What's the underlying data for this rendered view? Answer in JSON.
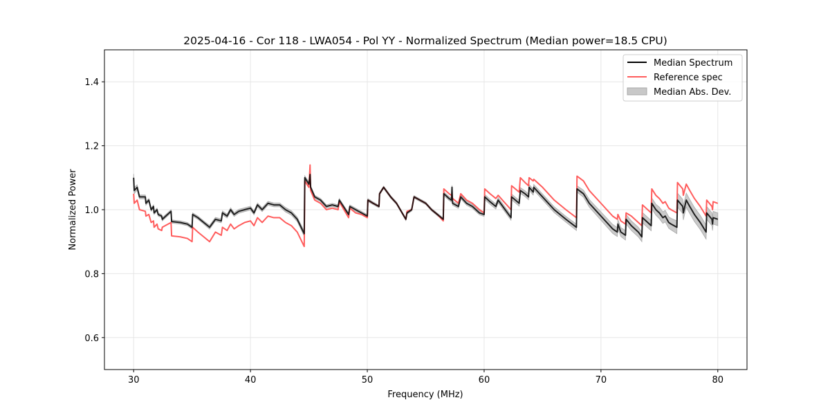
{
  "chart_data": {
    "type": "line",
    "title": "2025-04-16 - Cor 118 - LWA054 - Pol YY - Normalized Spectrum (Median power=18.5 CPU)",
    "xlabel": "Frequency (MHz)",
    "ylabel": "Normalized Power",
    "xlim": [
      27.5,
      82.5
    ],
    "ylim": [
      0.5,
      1.5
    ],
    "xticks": [
      30,
      40,
      50,
      60,
      70,
      80
    ],
    "xtick_labels": [
      "30",
      "40",
      "50",
      "60",
      "70",
      "80"
    ],
    "yticks": [
      0.6,
      0.8,
      1.0,
      1.2,
      1.4
    ],
    "ytick_labels": [
      "0.6",
      "0.8",
      "1.0",
      "1.2",
      "1.4"
    ],
    "grid": true,
    "legend_position": "top-right",
    "legend": [
      "Median Spectrum",
      "Reference spec",
      "Median Abs. Dev."
    ],
    "colors": {
      "median": "#000000",
      "reference": "#ff5c5c",
      "mad": "#b0b0b0"
    },
    "columns": [
      "freq_mhz",
      "median",
      "reference",
      "mad"
    ],
    "points": [
      [
        30.0,
        1.1,
        1.05,
        0.012
      ],
      [
        30.05,
        1.06,
        1.02,
        0.01
      ],
      [
        30.3,
        1.07,
        1.03,
        0.008
      ],
      [
        30.5,
        1.04,
        1.0,
        0.006
      ],
      [
        31.0,
        1.04,
        0.995,
        0.006
      ],
      [
        31.05,
        1.02,
        0.98,
        0.006
      ],
      [
        31.3,
        1.03,
        0.985,
        0.005
      ],
      [
        31.5,
        1.0,
        0.96,
        0.005
      ],
      [
        31.7,
        1.01,
        0.965,
        0.005
      ],
      [
        31.75,
        0.99,
        0.945,
        0.005
      ],
      [
        32.0,
        1.0,
        0.955,
        0.005
      ],
      [
        32.1,
        0.985,
        0.94,
        0.005
      ],
      [
        32.4,
        0.98,
        0.935,
        0.005
      ],
      [
        32.45,
        0.97,
        0.945,
        0.005
      ],
      [
        33.2,
        0.995,
        0.96,
        0.005
      ],
      [
        33.25,
        0.963,
        0.918,
        0.005
      ],
      [
        34.0,
        0.96,
        0.915,
        0.005
      ],
      [
        34.6,
        0.955,
        0.91,
        0.005
      ],
      [
        35.0,
        0.945,
        0.9,
        0.005
      ],
      [
        35.05,
        0.985,
        0.945,
        0.005
      ],
      [
        35.5,
        0.975,
        0.93,
        0.005
      ],
      [
        36.0,
        0.96,
        0.915,
        0.005
      ],
      [
        36.5,
        0.945,
        0.9,
        0.006
      ],
      [
        37.0,
        0.97,
        0.93,
        0.006
      ],
      [
        37.5,
        0.965,
        0.92,
        0.006
      ],
      [
        37.6,
        0.99,
        0.945,
        0.006
      ],
      [
        38.0,
        0.98,
        0.935,
        0.006
      ],
      [
        38.3,
        1.0,
        0.955,
        0.006
      ],
      [
        38.6,
        0.985,
        0.94,
        0.006
      ],
      [
        39.0,
        0.995,
        0.95,
        0.006
      ],
      [
        39.5,
        1.0,
        0.96,
        0.006
      ],
      [
        40.0,
        1.005,
        0.965,
        0.006
      ],
      [
        40.3,
        0.99,
        0.95,
        0.006
      ],
      [
        40.6,
        1.015,
        0.975,
        0.006
      ],
      [
        41.0,
        1.0,
        0.96,
        0.006
      ],
      [
        41.5,
        1.02,
        0.98,
        0.006
      ],
      [
        42.0,
        1.015,
        0.975,
        0.006
      ],
      [
        42.5,
        1.015,
        0.975,
        0.006
      ],
      [
        43.0,
        1.0,
        0.96,
        0.007
      ],
      [
        43.5,
        0.99,
        0.95,
        0.007
      ],
      [
        44.0,
        0.97,
        0.93,
        0.007
      ],
      [
        44.6,
        0.925,
        0.885,
        0.008
      ],
      [
        44.65,
        1.1,
        1.09,
        0.006
      ],
      [
        45.0,
        1.08,
        1.07,
        0.006
      ],
      [
        45.1,
        1.11,
        1.14,
        0.005
      ],
      [
        45.15,
        1.07,
        1.06,
        0.005
      ],
      [
        45.5,
        1.04,
        1.03,
        0.005
      ],
      [
        46.0,
        1.03,
        1.02,
        0.005
      ],
      [
        46.5,
        1.01,
        1.0,
        0.005
      ],
      [
        47.0,
        1.015,
        1.005,
        0.005
      ],
      [
        47.5,
        1.01,
        1.0,
        0.005
      ],
      [
        47.6,
        1.03,
        1.025,
        0.005
      ],
      [
        48.4,
        0.985,
        0.975,
        0.005
      ],
      [
        48.5,
        1.01,
        1.005,
        0.005
      ],
      [
        49.0,
        1.0,
        0.99,
        0.005
      ],
      [
        49.5,
        0.99,
        0.985,
        0.005
      ],
      [
        50.0,
        0.98,
        0.975,
        0.005
      ],
      [
        50.05,
        1.03,
        1.03,
        0.005
      ],
      [
        50.5,
        1.02,
        1.02,
        0.004
      ],
      [
        51.0,
        1.01,
        1.01,
        0.004
      ],
      [
        51.05,
        1.05,
        1.05,
        0.004
      ],
      [
        51.4,
        1.07,
        1.07,
        0.004
      ],
      [
        52.0,
        1.04,
        1.04,
        0.004
      ],
      [
        52.5,
        1.02,
        1.02,
        0.004
      ],
      [
        53.3,
        0.97,
        0.97,
        0.004
      ],
      [
        53.4,
        0.99,
        0.995,
        0.004
      ],
      [
        53.8,
        1.0,
        1.0,
        0.004
      ],
      [
        54.0,
        1.04,
        1.04,
        0.004
      ],
      [
        54.5,
        1.03,
        1.03,
        0.004
      ],
      [
        55.0,
        1.02,
        1.02,
        0.004
      ],
      [
        55.5,
        1.0,
        1.0,
        0.004
      ],
      [
        56.0,
        0.985,
        0.985,
        0.004
      ],
      [
        56.5,
        0.97,
        0.965,
        0.004
      ],
      [
        56.55,
        1.05,
        1.065,
        0.006
      ],
      [
        57.0,
        1.035,
        1.05,
        0.006
      ],
      [
        57.2,
        1.03,
        1.045,
        0.006
      ],
      [
        57.25,
        1.07,
        1.04,
        0.006
      ],
      [
        57.3,
        1.02,
        1.035,
        0.006
      ],
      [
        57.8,
        1.01,
        1.02,
        0.006
      ],
      [
        58.0,
        1.04,
        1.05,
        0.006
      ],
      [
        58.5,
        1.02,
        1.03,
        0.006
      ],
      [
        59.0,
        1.01,
        1.02,
        0.006
      ],
      [
        59.3,
        1.0,
        1.01,
        0.006
      ],
      [
        59.6,
        0.99,
        1.0,
        0.006
      ],
      [
        60.0,
        0.985,
        0.99,
        0.006
      ],
      [
        60.05,
        1.04,
        1.065,
        0.008
      ],
      [
        60.5,
        1.025,
        1.05,
        0.008
      ],
      [
        61.0,
        1.01,
        1.035,
        0.008
      ],
      [
        61.2,
        1.03,
        1.045,
        0.008
      ],
      [
        62.3,
        0.975,
        1.0,
        0.008
      ],
      [
        62.35,
        1.04,
        1.075,
        0.009
      ],
      [
        63.0,
        1.02,
        1.055,
        0.009
      ],
      [
        63.1,
        1.06,
        1.1,
        0.009
      ],
      [
        63.5,
        1.05,
        1.085,
        0.009
      ],
      [
        63.8,
        1.04,
        1.075,
        0.009
      ],
      [
        63.85,
        1.07,
        1.1,
        0.009
      ],
      [
        64.2,
        1.055,
        1.09,
        0.009
      ],
      [
        64.25,
        1.07,
        1.095,
        0.009
      ],
      [
        65.0,
        1.04,
        1.07,
        0.009
      ],
      [
        66.0,
        1.0,
        1.03,
        0.009
      ],
      [
        67.0,
        0.97,
        1.0,
        0.009
      ],
      [
        67.9,
        0.945,
        0.975,
        0.01
      ],
      [
        67.95,
        1.065,
        1.105,
        0.01
      ],
      [
        68.5,
        1.05,
        1.09,
        0.011
      ],
      [
        69.0,
        1.02,
        1.06,
        0.012
      ],
      [
        70.0,
        0.98,
        1.02,
        0.013
      ],
      [
        71.0,
        0.94,
        0.98,
        0.014
      ],
      [
        71.4,
        0.93,
        0.97,
        0.014
      ],
      [
        71.45,
        0.955,
        0.985,
        0.014
      ],
      [
        71.7,
        0.93,
        0.965,
        0.014
      ],
      [
        72.1,
        0.92,
        0.955,
        0.015
      ],
      [
        72.15,
        0.97,
        0.99,
        0.015
      ],
      [
        72.6,
        0.95,
        0.98,
        0.015
      ],
      [
        73.2,
        0.93,
        0.96,
        0.015
      ],
      [
        73.5,
        0.915,
        0.95,
        0.015
      ],
      [
        73.55,
        0.975,
        1.015,
        0.016
      ],
      [
        74.3,
        0.95,
        0.99,
        0.016
      ],
      [
        74.35,
        1.02,
        1.065,
        0.017
      ],
      [
        74.7,
        1.0,
        1.045,
        0.017
      ],
      [
        75.0,
        0.99,
        1.035,
        0.018
      ],
      [
        75.3,
        0.975,
        1.02,
        0.018
      ],
      [
        75.5,
        0.98,
        1.025,
        0.018
      ],
      [
        75.8,
        0.96,
        1.005,
        0.018
      ],
      [
        76.0,
        0.955,
        1.0,
        0.018
      ],
      [
        76.5,
        0.945,
        0.99,
        0.02
      ],
      [
        76.55,
        1.03,
        1.085,
        0.022
      ],
      [
        77.0,
        1.01,
        1.065,
        0.022
      ],
      [
        77.05,
        0.99,
        1.045,
        0.022
      ],
      [
        77.3,
        1.03,
        1.08,
        0.022
      ],
      [
        77.6,
        1.01,
        1.06,
        0.022
      ],
      [
        78.0,
        0.985,
        1.035,
        0.022
      ],
      [
        78.5,
        0.96,
        1.01,
        0.022
      ],
      [
        79.0,
        0.93,
        0.98,
        0.022
      ],
      [
        79.05,
        0.99,
        1.03,
        0.02
      ],
      [
        79.5,
        0.97,
        1.01,
        0.02
      ],
      [
        79.55,
        0.955,
        1.0,
        0.02
      ],
      [
        79.6,
        0.975,
        1.025,
        0.02
      ],
      [
        80.0,
        0.97,
        1.02,
        0.02
      ]
    ]
  }
}
